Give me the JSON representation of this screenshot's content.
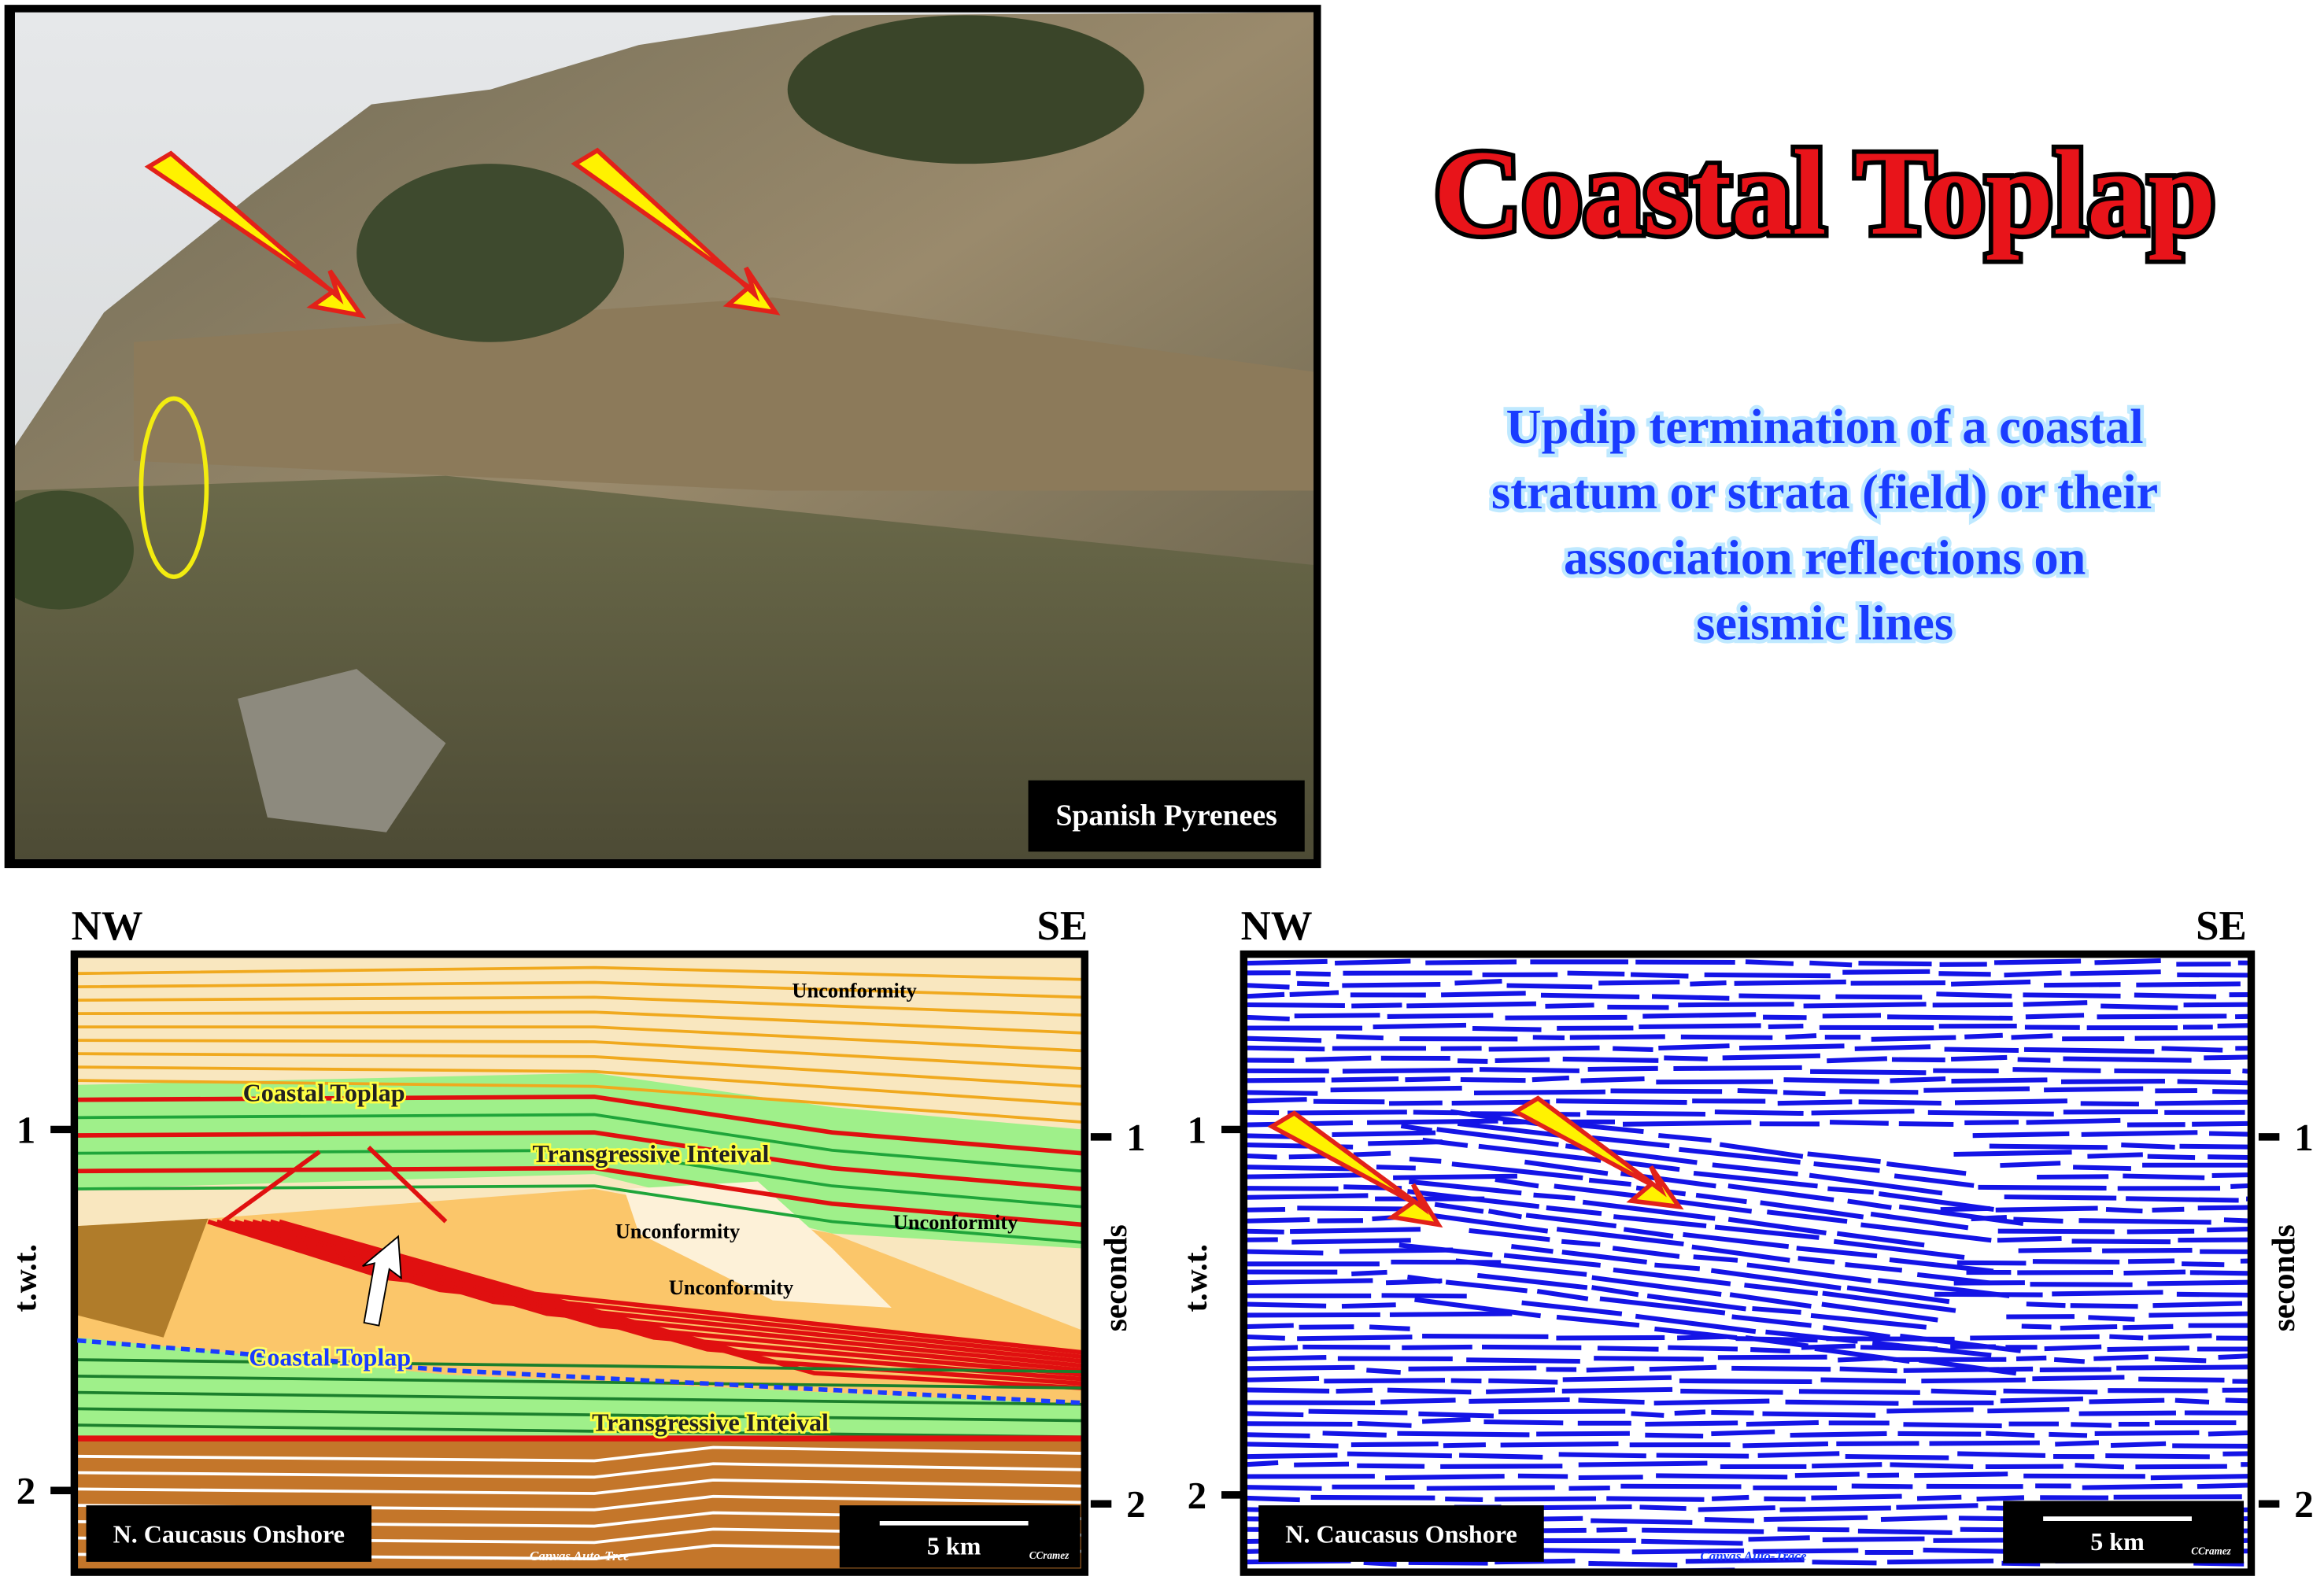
{
  "title": "Coastal Toplap",
  "subtitle": [
    "Updip termination of a coastal",
    "stratum or strata (field) or their",
    "association reflections on",
    "seismic lines"
  ],
  "photo": {
    "caption": "Spanish Pyrenees"
  },
  "interpretation": {
    "left_label": "NW",
    "right_label": "SE",
    "labels": [
      "Unconformity",
      "Coastal Toplap",
      "Transgressive Inteival",
      "Unconformity",
      "Unconformity",
      "Unconformity",
      "Coastal Toplap",
      "Transgressive Inteival"
    ],
    "left_axis": {
      "title": "t.w.t.",
      "ticks": [
        1,
        2
      ]
    },
    "right_axis": {
      "title": "seconds",
      "ticks": [
        1,
        2
      ]
    },
    "location": "N. Caucasus Onshore",
    "scale": "5 km",
    "credit": "CCramez",
    "software": "Canvas Auto-Tree"
  },
  "seismic": {
    "left_label": "NW",
    "right_label": "SE",
    "left_axis": {
      "title": "t.w.t.",
      "ticks": [
        1,
        2
      ]
    },
    "right_axis": {
      "title": "seconds",
      "ticks": [
        1,
        2
      ]
    },
    "location": "N. Caucasus Onshore",
    "scale": "5 km",
    "credit": "CCramez",
    "software": "Canvas Auto-Trace"
  }
}
